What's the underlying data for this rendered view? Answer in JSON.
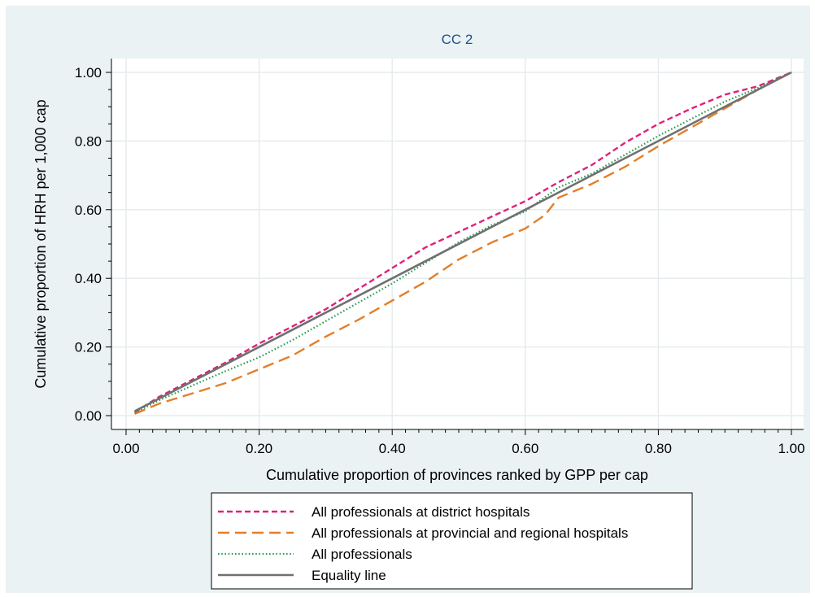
{
  "chart_data": {
    "type": "line",
    "title": "CC 2",
    "xlabel": "Cumulative proportion of provinces ranked by GPP per cap",
    "ylabel": "Cumulative proportion of HRH per 1,000 cap",
    "xlim": [
      0,
      1
    ],
    "ylim": [
      0,
      1
    ],
    "xticks": [
      "0.00",
      "0.20",
      "0.40",
      "0.60",
      "0.80",
      "1.00"
    ],
    "yticks": [
      "0.00",
      "0.20",
      "0.40",
      "0.60",
      "0.80",
      "1.00"
    ],
    "grid": "horizontal and vertical",
    "legend_position": "bottom",
    "series": [
      {
        "name": "All professionals at district hospitals",
        "color": "#e0207a",
        "style": "short-dash",
        "x": [
          0.013,
          0.05,
          0.1,
          0.15,
          0.2,
          0.25,
          0.3,
          0.35,
          0.4,
          0.45,
          0.5,
          0.55,
          0.6,
          0.65,
          0.7,
          0.75,
          0.8,
          0.85,
          0.9,
          0.95,
          1.0
        ],
        "y": [
          0.01,
          0.055,
          0.105,
          0.155,
          0.21,
          0.26,
          0.31,
          0.37,
          0.43,
          0.49,
          0.535,
          0.58,
          0.625,
          0.68,
          0.73,
          0.795,
          0.85,
          0.895,
          0.935,
          0.96,
          1.0
        ]
      },
      {
        "name": "All professionals at provincial and regional hospitals",
        "color": "#e37f29",
        "style": "long-dash",
        "x": [
          0.013,
          0.05,
          0.1,
          0.15,
          0.2,
          0.25,
          0.3,
          0.35,
          0.4,
          0.45,
          0.5,
          0.55,
          0.6,
          0.63,
          0.65,
          0.7,
          0.75,
          0.8,
          0.85,
          0.9,
          0.95,
          1.0
        ],
        "y": [
          0.005,
          0.035,
          0.065,
          0.095,
          0.135,
          0.175,
          0.23,
          0.28,
          0.335,
          0.39,
          0.455,
          0.505,
          0.545,
          0.585,
          0.635,
          0.675,
          0.725,
          0.785,
          0.84,
          0.895,
          0.95,
          1.0
        ]
      },
      {
        "name": "All professionals",
        "color": "#2e9a55",
        "style": "dotted",
        "x": [
          0.013,
          0.05,
          0.1,
          0.15,
          0.2,
          0.25,
          0.3,
          0.35,
          0.4,
          0.45,
          0.5,
          0.55,
          0.6,
          0.65,
          0.7,
          0.75,
          0.8,
          0.85,
          0.9,
          0.95,
          1.0
        ],
        "y": [
          0.008,
          0.045,
          0.088,
          0.13,
          0.17,
          0.22,
          0.275,
          0.33,
          0.385,
          0.445,
          0.505,
          0.555,
          0.595,
          0.665,
          0.705,
          0.76,
          0.815,
          0.865,
          0.915,
          0.955,
          1.0
        ]
      },
      {
        "name": "Equality line",
        "color": "#707070",
        "style": "solid",
        "x": [
          0.013,
          1.0
        ],
        "y": [
          0.013,
          1.0
        ]
      }
    ]
  }
}
